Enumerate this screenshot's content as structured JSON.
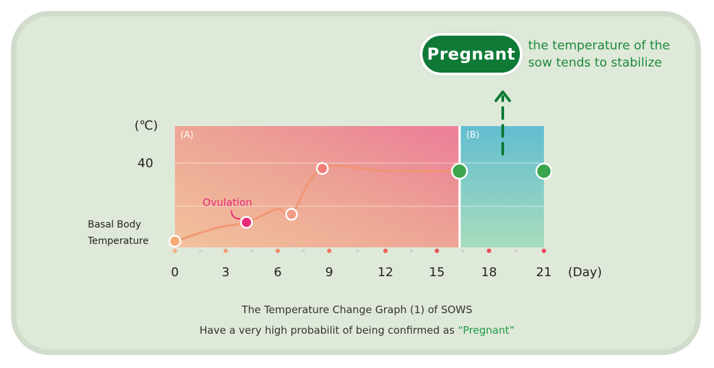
{
  "chart_data": {
    "type": "line",
    "title": "The Temperature Change Graph (1) of SOWS",
    "subtitle_prefix": "Have a very high probabilit of being confirmed as ",
    "subtitle_highlight": "“Pregnant”",
    "xlabel": "(Day)",
    "ylabel": "(℃)",
    "x_ticks": [
      0,
      3,
      6,
      9,
      12,
      15,
      18,
      21
    ],
    "xlim": [
      0,
      21
    ],
    "y_tick_label": "40",
    "y_tick_value": 40,
    "y_start_label": "Basal Body Temperature",
    "ylim": [
      37.0,
      40.5
    ],
    "regions": [
      {
        "label": "(A)",
        "from": 0,
        "to": 16.3
      },
      {
        "label": "(B)",
        "from": 16.3,
        "to": 21
      }
    ],
    "series": [
      {
        "x": [
          0,
          2.5,
          4.2,
          6,
          6.8,
          8.6,
          12,
          16.3,
          21
        ],
        "y": [
          37.1,
          37.6,
          37.8,
          38.3,
          38.1,
          39.8,
          39.7,
          39.7,
          39.7
        ]
      }
    ],
    "key_points": [
      {
        "x": 0,
        "y": 37.1
      },
      {
        "x": 4.2,
        "y": 37.8,
        "label": "Ovulation"
      },
      {
        "x": 6.8,
        "y": 38.1
      },
      {
        "x": 8.6,
        "y": 39.8
      },
      {
        "x": 16.3,
        "y": 39.7
      },
      {
        "x": 21,
        "y": 39.7
      }
    ],
    "grid": true,
    "colors": {
      "region_a": "#eaa08f",
      "region_b": "#7ec6c9",
      "line_a": "#f0956e",
      "line_b": "#36a24c",
      "ovulation": "#e8297a",
      "pregnant": "#0e7a36"
    }
  },
  "badge": "Pregnant",
  "note": [
    "the temperature of the",
    "sow tends to stabilize"
  ]
}
